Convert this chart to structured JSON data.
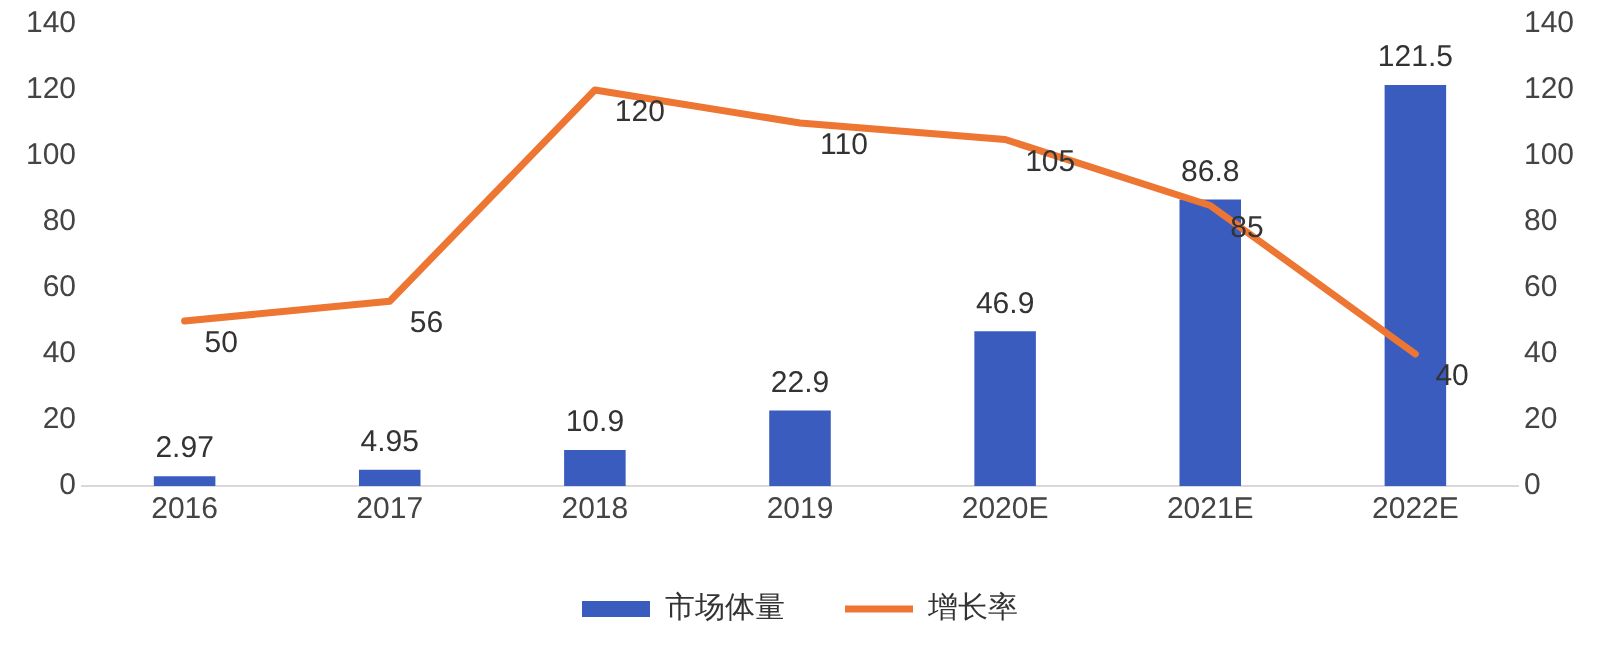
{
  "chart_data": {
    "type": "bar",
    "categories": [
      "2016",
      "2017",
      "2018",
      "2019",
      "2020E",
      "2021E",
      "2022E"
    ],
    "series": [
      {
        "name": "市场体量",
        "color": "#3a5cbf",
        "values": [
          2.97,
          4.95,
          10.9,
          22.9,
          46.9,
          86.8,
          121.5
        ]
      },
      {
        "name": "增长率",
        "type": "line",
        "axis": "y2",
        "color": "#ee7633",
        "values": [
          50,
          56,
          120,
          110,
          105,
          85,
          40
        ]
      }
    ],
    "ylim": [
      0,
      140
    ],
    "yticks": [
      0,
      20,
      40,
      60,
      80,
      100,
      120,
      140
    ],
    "y2lim": [
      0,
      140
    ],
    "y2ticks": [
      0,
      20,
      40,
      60,
      80,
      100,
      120,
      140
    ],
    "data_labels": true,
    "grid": false,
    "legend": "bottom",
    "marker": "none"
  }
}
